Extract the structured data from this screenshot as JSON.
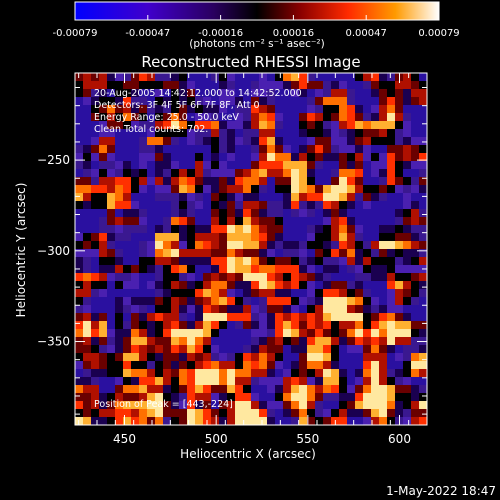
{
  "colorbar": {
    "tick_labels": [
      "-0.00079",
      "-0.00047",
      "-0.00016",
      "0.00016",
      "0.00047",
      "0.00079"
    ],
    "unit_label": "(photons cm⁻² s⁻¹ asec⁻²)",
    "range": [
      -0.00079,
      0.00079
    ],
    "colors": [
      "#0000ff",
      "#3300cc",
      "#6600aa",
      "#000000",
      "#8b0000",
      "#ff3300",
      "#ff8800",
      "#ffe080",
      "#ffffff"
    ]
  },
  "plot": {
    "title": "Reconstructed RHESSI Image",
    "annotations": [
      "20-Aug-2005 14:42:12.000 to 14:42:52.000",
      "Detectors: 3F 4F 5F 6F 7F 8F, Att 0",
      "Energy Range: 25.0 - 50.0 keV",
      "Clean     Total counts: 702."
    ],
    "peak_label": "Position of Peak = [443,-224]",
    "xlabel": "Heliocentric X (arcsec)",
    "ylabel": "Heliocentric Y (arcsec)",
    "xticks": [
      "450",
      "500",
      "550",
      "600"
    ],
    "yticks": [
      "-250",
      "-300",
      "-350"
    ]
  },
  "footer": {
    "timestamp": "1-May-2022 18:47"
  },
  "chart_data": {
    "type": "heatmap",
    "title": "Reconstructed RHESSI Image",
    "xlabel": "Heliocentric X (arcsec)",
    "ylabel": "Heliocentric Y (arcsec)",
    "xlim": [
      423,
      615
    ],
    "ylim": [
      -396,
      -202
    ],
    "x_ticks": [
      450,
      500,
      550,
      600
    ],
    "y_ticks": [
      -250,
      -300,
      -350
    ],
    "colorbar_range": [
      -0.00079,
      0.00079
    ],
    "peak_position": [
      443,
      -224
    ],
    "energy_range_kev": [
      25.0,
      50.0
    ],
    "total_counts": 702
  }
}
